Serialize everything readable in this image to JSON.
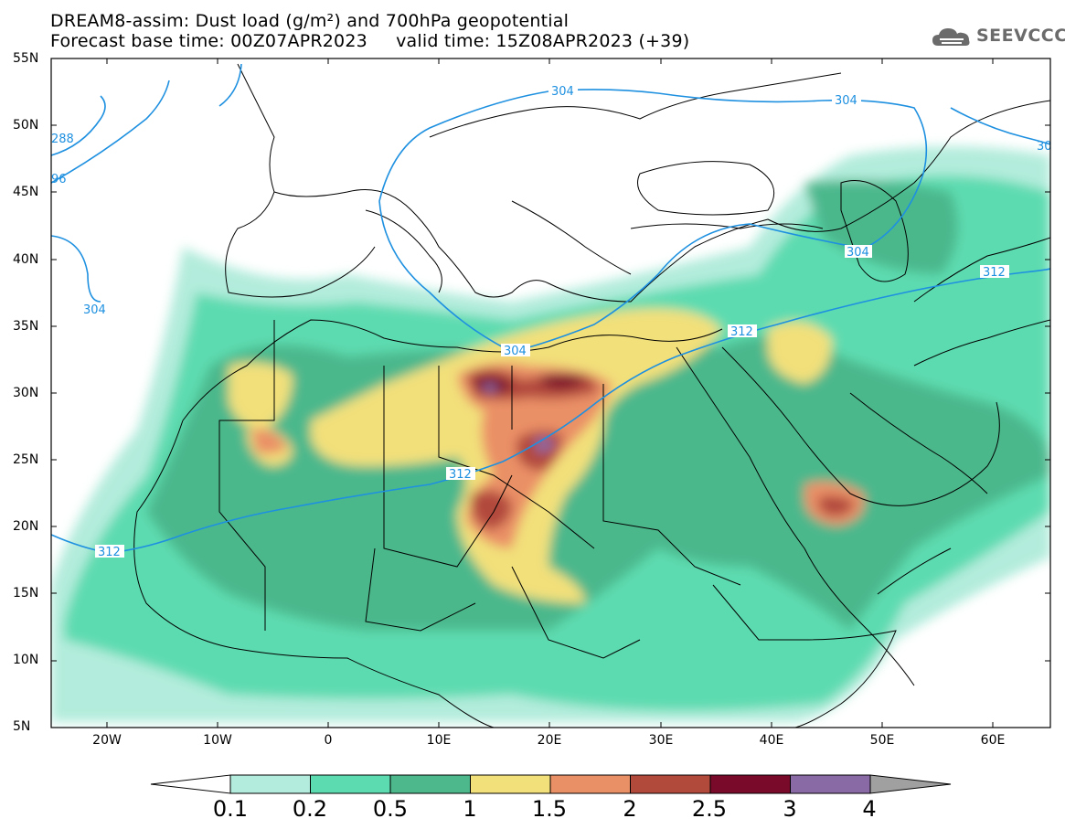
{
  "header": {
    "line1": "DREAM8-assim: Dust load (g/m²) and 700hPa geopotential",
    "line2": "Forecast base time: 00Z07APR2023     valid time: 15Z08APR2023 (+39)",
    "logo_text": "SEEVCCC"
  },
  "axes": {
    "lat_labels": [
      "55N",
      "50N",
      "45N",
      "40N",
      "35N",
      "30N",
      "25N",
      "20N",
      "15N",
      "10N",
      "5N"
    ],
    "lon_labels": [
      "20W",
      "10W",
      "0",
      "10E",
      "20E",
      "30E",
      "40E",
      "50E",
      "60E"
    ]
  },
  "contours": {
    "labels": [
      "304",
      "304",
      "304",
      "304",
      "304",
      "312",
      "312",
      "312",
      "312",
      "288",
      "96",
      "30"
    ],
    "color": "#1e90e0"
  },
  "legend": {
    "colors": [
      "#b3ecdc",
      "#5ddbb0",
      "#4cb88c",
      "#f2e07a",
      "#ea9066",
      "#b24a3c",
      "#7a0a2a",
      "#8a6aa4"
    ],
    "under_color": "#ffffff",
    "over_color": "#a0a0a0",
    "tick_labels": [
      "0.1",
      "0.2",
      "0.5",
      "1",
      "1.5",
      "2",
      "2.5",
      "3",
      "4"
    ]
  },
  "map": {
    "land_fill": "#ffffff",
    "border_color": "#000000"
  }
}
